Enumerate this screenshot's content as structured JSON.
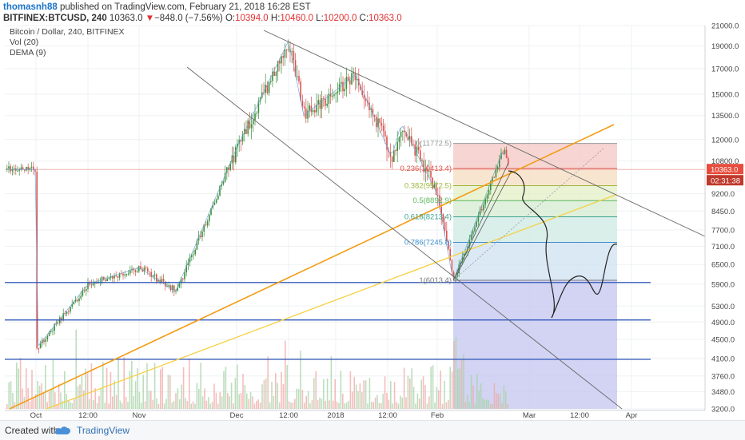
{
  "header": {
    "author": "thomasnh88",
    "published_text": "published on TradingView.com, February 21, 2018 16:28 EST",
    "symbol": "BITFINEX:BTCUSD, 240",
    "last": "10363.0",
    "change_arrow": "▼",
    "change": "−848.0 (−7.56%)",
    "ohlc_labels": {
      "o": "O:",
      "h": "H:",
      "l": "L:",
      "c": "C:"
    },
    "ohlc_values": {
      "o": "10394.0",
      "h": "10460.0",
      "l": "10200.0",
      "c": "10363.0"
    }
  },
  "legend": {
    "line1": "Bitcoin / Dollar, 240, BITFINEX",
    "line2": "Vol (20)",
    "line3": "DEMA (9)"
  },
  "price_tags": {
    "last": "10363.0",
    "countdown": "02:31:38"
  },
  "footer": {
    "created_with": "Created with",
    "brand": "TradingView"
  },
  "colors": {
    "up": "#3d8f3d",
    "down": "#d9534f",
    "orange_trend": "#f39c12",
    "yellow_trend": "#f5d142",
    "blue_levels": "#2d55b8",
    "price_tag": "#e74c3c",
    "grid": "#eef1f4"
  },
  "chart_data": {
    "type": "candlestick",
    "y_scale": "log",
    "ylim": [
      3200,
      21000
    ],
    "y_ticks": [
      "21000.0",
      "19000.0",
      "17000.0",
      "15000.0",
      "13500.0",
      "12000.0",
      "10800.0",
      "9200.0",
      "8450.0",
      "7700.0",
      "7100.0",
      "6500.0",
      "5900.0",
      "5300.0",
      "4900.0",
      "4500.0",
      "4100.0",
      "3760.0",
      "3480.0",
      "3200.0"
    ],
    "x_ticks": [
      "Oct",
      "12:00",
      "Nov",
      "Dec",
      "12:00",
      "2018",
      "12:00",
      "Feb",
      "Mar",
      "12:00",
      "Apr"
    ],
    "price_path": [
      [
        "Oct",
        4300
      ],
      [
        "12:00",
        5900
      ],
      [
        "Nov",
        6400
      ],
      [
        "Nov",
        5700
      ],
      [
        "Dec",
        11500
      ],
      [
        "12:00",
        19500
      ],
      [
        "12:00",
        13500
      ],
      [
        "2018",
        16500
      ],
      [
        "12:00",
        11000
      ],
      [
        "12:00",
        13000
      ],
      [
        "Feb",
        9200
      ],
      [
        "Feb",
        6000
      ],
      [
        "Mar",
        11500
      ],
      [
        "Mar",
        10363
      ]
    ],
    "horizontal_levels": [
      5950,
      4950,
      4080
    ],
    "fibonacci": [
      {
        "label": "0(11772.5)",
        "value": 11772.5
      },
      {
        "label": "0.236(10413.4)",
        "value": 10413.4
      },
      {
        "label": "0.382(9572.5)",
        "value": 9572.5
      },
      {
        "label": "0.5(8892.9)",
        "value": 8892.9
      },
      {
        "label": "0.618(8213.4)",
        "value": 8213.4
      },
      {
        "label": "0.786(7245.8)",
        "value": 7245.8
      },
      {
        "label": "1(6013.4)",
        "value": 6013.4
      }
    ],
    "last_price": 10363.0
  }
}
